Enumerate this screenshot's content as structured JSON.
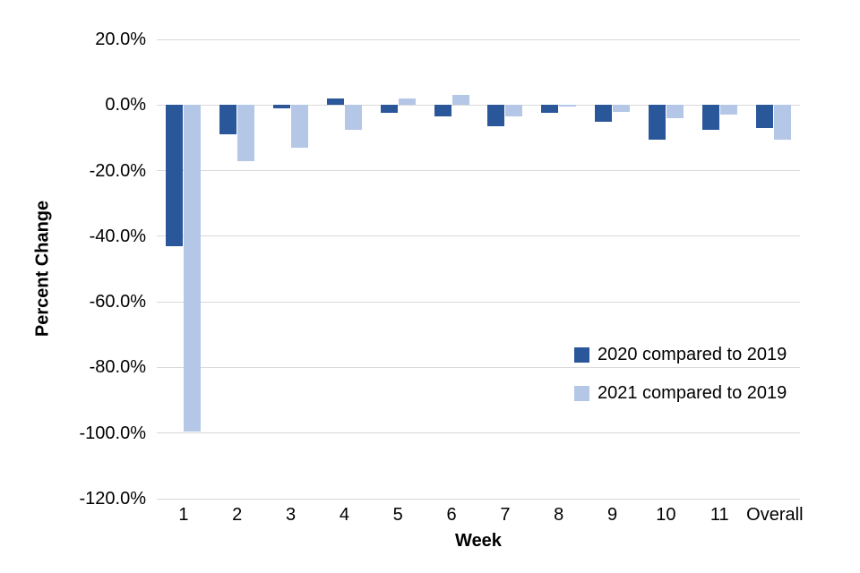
{
  "chart_data": {
    "type": "bar",
    "title": "",
    "xlabel": "Week",
    "ylabel": "Percent Change",
    "categories": [
      "1",
      "2",
      "3",
      "4",
      "5",
      "6",
      "7",
      "8",
      "9",
      "10",
      "11",
      "Overall"
    ],
    "series": [
      {
        "name": "2020 compared to 2019",
        "color": "#2A5799",
        "values": [
          -43,
          -9,
          -1,
          2,
          -2.5,
          -3.5,
          -6.5,
          -2.5,
          -5,
          -10.5,
          -7.5,
          -7
        ]
      },
      {
        "name": "2021 compared to 2019",
        "color": "#B4C7E7",
        "values": [
          -99.5,
          -17,
          -13,
          -7.5,
          2,
          3,
          -3.5,
          -0.5,
          -2,
          -4,
          -3,
          -10.5
        ]
      }
    ],
    "ylim": [
      -120,
      20
    ],
    "ytick_step": 20,
    "ytick_labels": [
      "20.0%",
      "0.0%",
      "-20.0%",
      "-40.0%",
      "-60.0%",
      "-80.0%",
      "-100.0%",
      "-120.0%"
    ],
    "grid": true,
    "legend_position": "inside-right"
  },
  "colors": {
    "grid": "#D9D9D9",
    "text": "#000000",
    "background": "#FFFFFF"
  }
}
